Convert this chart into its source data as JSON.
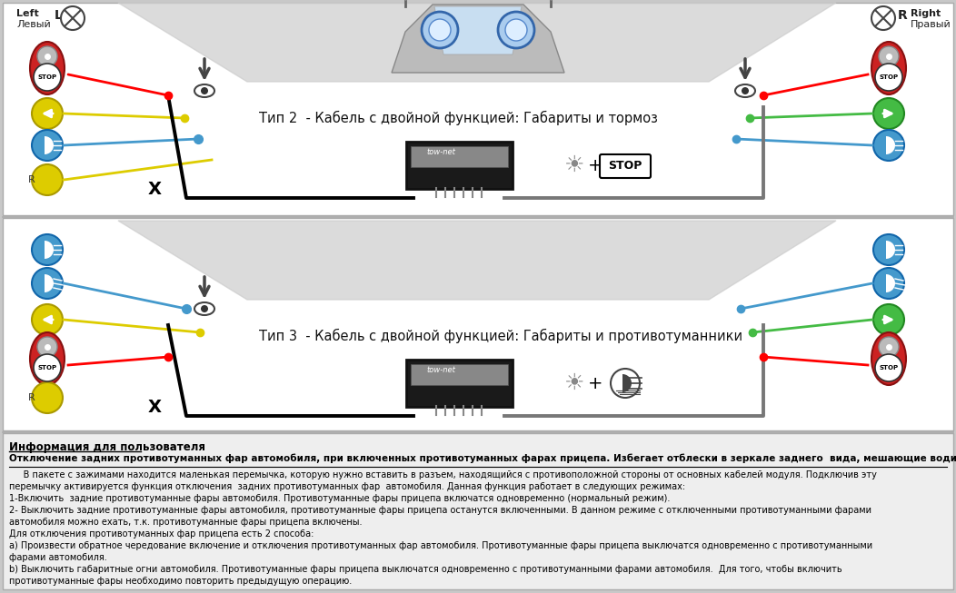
{
  "bg_color": "#f5f5f5",
  "panel_bg": "#ffffff",
  "text_info_bg": "#e8e8e8",
  "panel1_title": "Тип 2  - Кабель с двойной функцией: Габариты и тормоз",
  "panel2_title": "Тип 3  - Кабель с двойной функцией: Габариты и противотуманники",
  "left_label_en": "Left",
  "left_label_ru": "Левый",
  "right_label_en": "Right",
  "right_label_ru": "Правый",
  "info_header": "Информация для пользователя",
  "info_underline": "Отключение задних противотуманных фар автомобиля, при включенных противотуманных фарах прицепа. Избегает отблески в зеркале заднего  вида, мешающие водителю.",
  "info_text": [
    "     В пакете с зажимами находится маленькая перемычка, которую нужно вставить в разъем, находящийся с противоположной стороны от основных кабелей модуля. Подключив эту",
    "перемычку активируется функция отключения  задних противотуманных фар  автомобиля. Данная функция работает в следующих режимах:",
    "1-Включить  задние противотуманные фары автомобиля. Противотуманные фары прицепа включатся одновременно (нормальный режим).",
    "2- Выключить задние противотуманные фары автомобиля, противотуманные фары прицепа останутся включенными. В данном режиме с отключенными противотуманными фарами",
    "автомобиля можно ехать, т.к. противотуманные фары прицепа включены.",
    "Для отключения противотуманных фар прицепа есть 2 способа:",
    "а) Произвести обратное чередование включение и отключения противотуманных фар автомобиля. Противотуманные фары прицепа выключатся одновременно с противотуманными",
    "фарами автомобиля.",
    "b) Выключить габаритные огни автомобиля. Противотуманные фары прицепа выключатся одновременно с противотуманными фарами автомобиля.  Для того, чтобы включить",
    "противотуманные фары необходимо повторить предыдущую операцию."
  ]
}
